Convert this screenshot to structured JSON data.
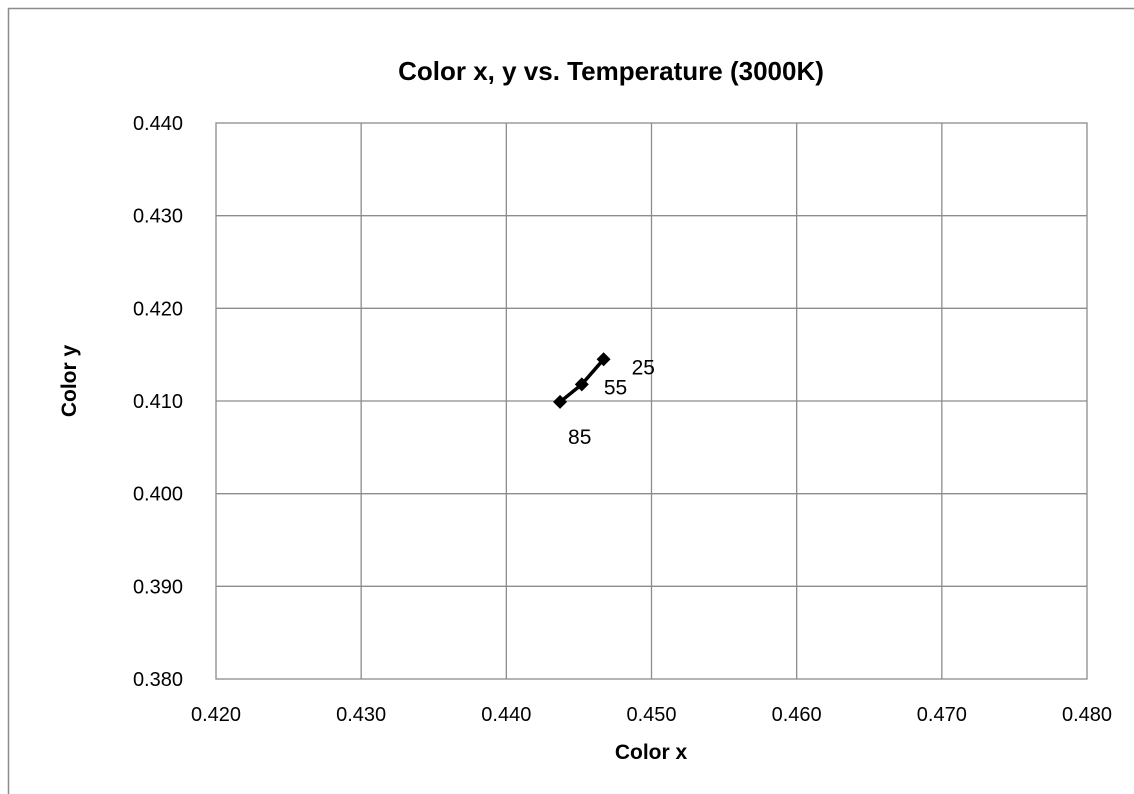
{
  "chart_data": {
    "type": "scatter",
    "title": "Color x, y vs. Temperature (3000K)",
    "xlabel": "Color x",
    "ylabel": "Color y",
    "xlim": [
      0.42,
      0.48
    ],
    "ylim": [
      0.38,
      0.44
    ],
    "x_ticks": [
      "0.420",
      "0.430",
      "0.440",
      "0.450",
      "0.460",
      "0.470",
      "0.480"
    ],
    "y_ticks": [
      "0.380",
      "0.390",
      "0.400",
      "0.410",
      "0.420",
      "0.430",
      "0.440"
    ],
    "grid": true,
    "line_connected": true,
    "marker": "diamond",
    "series": [
      {
        "points": [
          {
            "x": 0.4467,
            "y": 0.4145,
            "label": "25"
          },
          {
            "x": 0.4452,
            "y": 0.4118,
            "label": "55"
          },
          {
            "x": 0.4437,
            "y": 0.4099,
            "label": "85"
          }
        ]
      }
    ],
    "colors": {
      "series": "#000000",
      "grid": "#8c8c8c",
      "frame": "#8c8c8c"
    }
  }
}
